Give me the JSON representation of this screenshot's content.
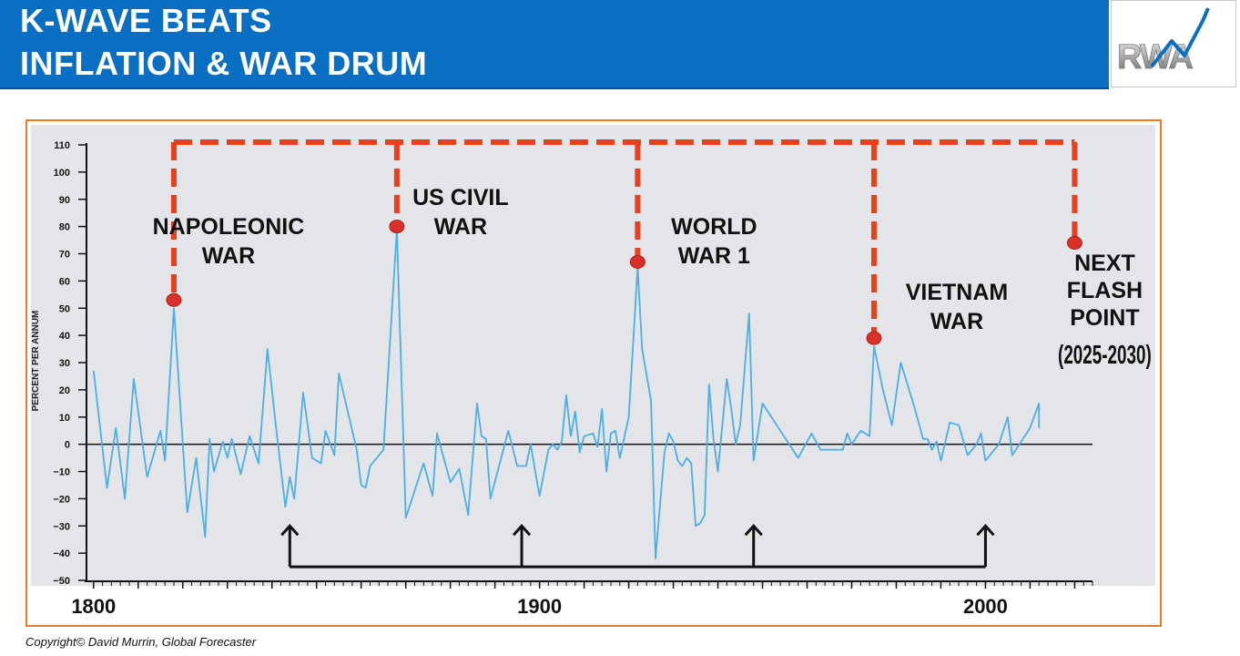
{
  "header": {
    "title_line1": "K-WAVE BEATS",
    "title_line2": "INFLATION & WAR DRUM",
    "logo_text": "RWA"
  },
  "footer": {
    "copyright": "Copyright© David Murrin, Global Forecaster"
  },
  "colors": {
    "banner": "#0a6fc2",
    "frame": "#f07a1c",
    "plot_bg": "#e4e5e8",
    "series": "#4aaee8",
    "war_marker": "#e8401c",
    "arrows": "#111111"
  },
  "chart_data": {
    "type": "line",
    "title": "",
    "ylabel": "PERCENT PER ANNUM",
    "xlabel": "",
    "xlim": [
      1798,
      2024
    ],
    "ylim": [
      -50,
      110
    ],
    "yticks": [
      110,
      100,
      90,
      80,
      70,
      60,
      50,
      40,
      30,
      20,
      10,
      0,
      -10,
      -20,
      -30,
      -40,
      -50
    ],
    "xtick_labels": [
      {
        "x": 1800,
        "label": "1800"
      },
      {
        "x": 1900,
        "label": "1900"
      },
      {
        "x": 2000,
        "label": "2000"
      }
    ],
    "series": [
      {
        "points": [
          [
            1800,
            27
          ],
          [
            1803,
            -16
          ],
          [
            1805,
            6
          ],
          [
            1807,
            -20
          ],
          [
            1809,
            24
          ],
          [
            1812,
            -12
          ],
          [
            1815,
            5
          ],
          [
            1816,
            -6
          ],
          [
            1818,
            50
          ],
          [
            1821,
            -25
          ],
          [
            1823,
            -5
          ],
          [
            1825,
            -34
          ],
          [
            1826,
            2
          ],
          [
            1827,
            -10
          ],
          [
            1829,
            1
          ],
          [
            1830,
            -5
          ],
          [
            1831,
            2
          ],
          [
            1833,
            -11
          ],
          [
            1835,
            3
          ],
          [
            1837,
            -7
          ],
          [
            1839,
            35
          ],
          [
            1841,
            5
          ],
          [
            1843,
            -23
          ],
          [
            1844,
            -12
          ],
          [
            1845,
            -20
          ],
          [
            1847,
            19
          ],
          [
            1849,
            -5
          ],
          [
            1851,
            -7
          ],
          [
            1852,
            5
          ],
          [
            1854,
            -4
          ],
          [
            1855,
            26
          ],
          [
            1857,
            12
          ],
          [
            1859,
            -2
          ],
          [
            1860,
            -15
          ],
          [
            1861,
            -16
          ],
          [
            1862,
            -8
          ],
          [
            1865,
            -2
          ],
          [
            1868,
            79
          ],
          [
            1870,
            -27
          ],
          [
            1872,
            -17
          ],
          [
            1874,
            -7
          ],
          [
            1876,
            -19
          ],
          [
            1877,
            4
          ],
          [
            1880,
            -14
          ],
          [
            1882,
            -9
          ],
          [
            1884,
            -26
          ],
          [
            1886,
            15
          ],
          [
            1887,
            3
          ],
          [
            1888,
            2
          ],
          [
            1889,
            -20
          ],
          [
            1893,
            5
          ],
          [
            1895,
            -8
          ],
          [
            1897,
            -8
          ],
          [
            1898,
            0
          ],
          [
            1900,
            -19
          ],
          [
            1902,
            -2
          ],
          [
            1903,
            0
          ],
          [
            1904,
            -2
          ],
          [
            1905,
            1
          ],
          [
            1906,
            18
          ],
          [
            1907,
            3
          ],
          [
            1908,
            12
          ],
          [
            1909,
            -3
          ],
          [
            1910,
            3
          ],
          [
            1912,
            4
          ],
          [
            1913,
            -1
          ],
          [
            1914,
            13
          ],
          [
            1915,
            -10
          ],
          [
            1916,
            4
          ],
          [
            1917,
            5
          ],
          [
            1918,
            -5
          ],
          [
            1920,
            10
          ],
          [
            1922,
            65
          ],
          [
            1923,
            35
          ],
          [
            1925,
            16
          ],
          [
            1926,
            -42
          ],
          [
            1928,
            -3
          ],
          [
            1929,
            4
          ],
          [
            1930,
            1
          ],
          [
            1931,
            -6
          ],
          [
            1932,
            -8
          ],
          [
            1933,
            -5
          ],
          [
            1934,
            -7
          ],
          [
            1935,
            -30
          ],
          [
            1936,
            -29
          ],
          [
            1937,
            -26
          ],
          [
            1938,
            22
          ],
          [
            1939,
            2
          ],
          [
            1940,
            -10
          ],
          [
            1942,
            24
          ],
          [
            1943,
            13
          ],
          [
            1944,
            0
          ],
          [
            1945,
            7
          ],
          [
            1947,
            48
          ],
          [
            1948,
            -6
          ],
          [
            1950,
            15
          ],
          [
            1958,
            -5
          ],
          [
            1961,
            4
          ],
          [
            1963,
            -2
          ],
          [
            1965,
            -2
          ],
          [
            1967,
            -2
          ],
          [
            1968,
            -2
          ],
          [
            1969,
            4
          ],
          [
            1970,
            0
          ],
          [
            1972,
            5
          ],
          [
            1974,
            3
          ],
          [
            1975,
            36
          ],
          [
            1977,
            20
          ],
          [
            1979,
            7
          ],
          [
            1981,
            30
          ],
          [
            1984,
            14
          ],
          [
            1986,
            2
          ],
          [
            1987,
            2
          ],
          [
            1988,
            -2
          ],
          [
            1989,
            1
          ],
          [
            1990,
            -6
          ],
          [
            1992,
            8
          ],
          [
            1994,
            7
          ],
          [
            1996,
            -4
          ],
          [
            1998,
            0
          ],
          [
            1999,
            4
          ],
          [
            2000,
            -6
          ],
          [
            2003,
            0
          ],
          [
            2005,
            10
          ],
          [
            2006,
            -4
          ],
          [
            2010,
            6
          ],
          [
            2012,
            15
          ],
          [
            2012,
            6
          ]
        ]
      }
    ],
    "annotations": [
      {
        "id": "napoleonic",
        "label_lines": [
          "NAPOLEONIC",
          "WAR"
        ],
        "x": 1818,
        "y": 53
      },
      {
        "id": "us-civil",
        "label_lines": [
          "US CIVIL",
          "WAR"
        ],
        "x": 1868,
        "y": 80
      },
      {
        "id": "world-war-1",
        "label_lines": [
          "WORLD",
          "WAR 1"
        ],
        "x": 1922,
        "y": 67
      },
      {
        "id": "vietnam",
        "label_lines": [
          "VIETNAM",
          "WAR"
        ],
        "x": 1975,
        "y": 39
      },
      {
        "id": "next-flash",
        "label_lines": [
          "NEXT",
          "FLASH",
          "POINT",
          "(2025-2030)"
        ],
        "x": 2020,
        "y": 74
      }
    ],
    "dashed_top_y": 111,
    "cycle_arrows_x": [
      1844,
      1896,
      1948,
      2000
    ],
    "cycle_baseline_y": -45,
    "cycle_arrow_top_y": -30
  }
}
